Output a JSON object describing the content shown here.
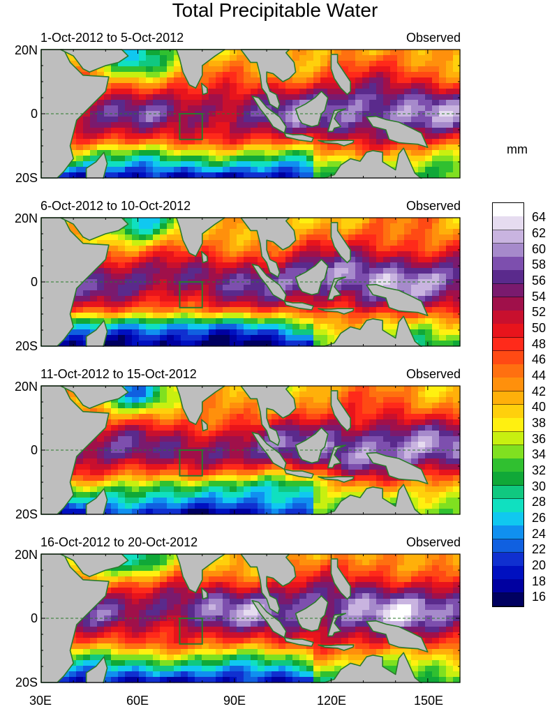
{
  "title": "Total Precipitable Water",
  "units": "mm",
  "y_axis_labels": [
    "20N",
    "0",
    "20S"
  ],
  "x_axis_labels": [
    "30E",
    "60E",
    "90E",
    "120E",
    "150E"
  ],
  "panels": [
    {
      "date_range": "1-Oct-2012 to 5-Oct-2012",
      "status": "Observed"
    },
    {
      "date_range": "6-Oct-2012 to 10-Oct-2012",
      "status": "Observed"
    },
    {
      "date_range": "11-Oct-2012 to 15-Oct-2012",
      "status": "Observed"
    },
    {
      "date_range": "16-Oct-2012 to 20-Oct-2012",
      "status": "Observed"
    }
  ],
  "colorbar": {
    "labels": [
      "64",
      "62",
      "60",
      "58",
      "56",
      "54",
      "52",
      "50",
      "48",
      "46",
      "44",
      "42",
      "40",
      "38",
      "36",
      "34",
      "32",
      "30",
      "28",
      "26",
      "24",
      "22",
      "20",
      "18",
      "16"
    ],
    "colors": [
      "#ffffff",
      "#e6dcf0",
      "#c9b4e0",
      "#a68acb",
      "#7d4fae",
      "#5a2a8c",
      "#7a1a6e",
      "#a0104a",
      "#c8102e",
      "#e8141c",
      "#ff2a1a",
      "#ff4a14",
      "#ff7010",
      "#ff900c",
      "#ffb00a",
      "#ffd00c",
      "#fff010",
      "#c8f010",
      "#80e020",
      "#30c030",
      "#10a838",
      "#10c880",
      "#10e0c0",
      "#10c8f0",
      "#1090f0",
      "#1060e0",
      "#1030d0",
      "#0010c0",
      "#0000a0",
      "#000060"
    ]
  },
  "colors": {
    "land": "#bebebe",
    "coastline": "#2a7a2a",
    "box": "#2a7a2a"
  }
}
